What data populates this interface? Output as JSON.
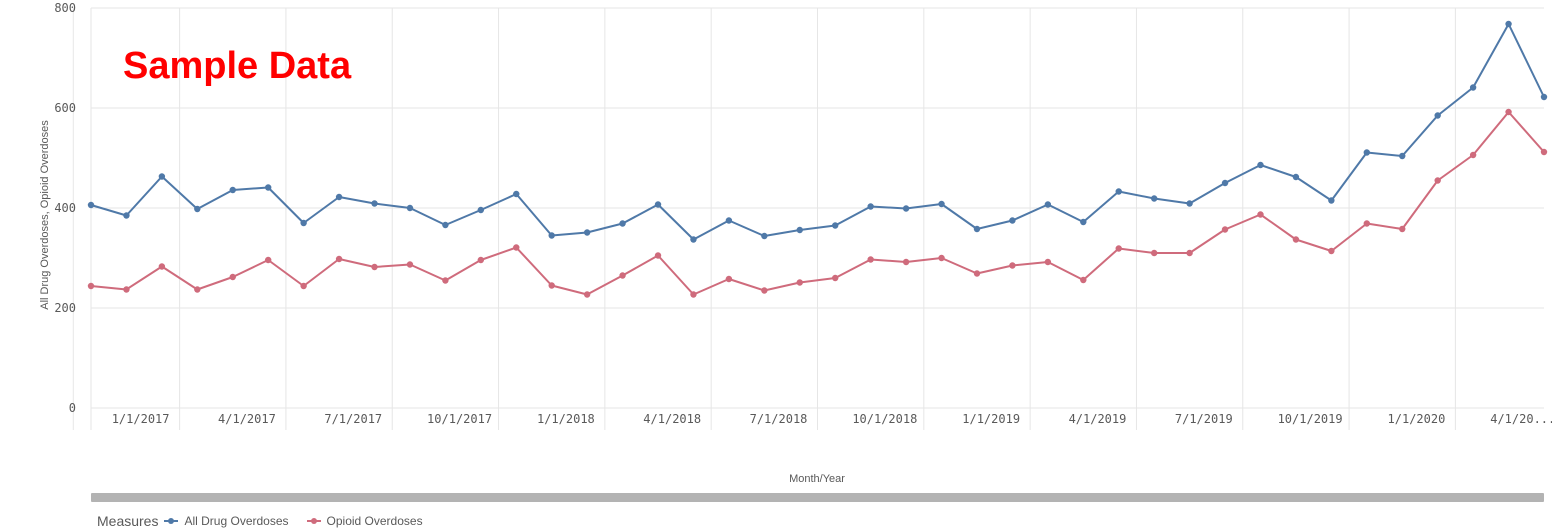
{
  "watermark": "Sample Data",
  "colors": {
    "all": "#4f79a8",
    "opioid": "#cf6b7c",
    "grid": "#e6e6e6",
    "axis": "#9a9a9a"
  },
  "legend": {
    "title": "Measures",
    "items": [
      {
        "label": "All Drug Overdoses",
        "color": "#4f79a8"
      },
      {
        "label": "Opioid Overdoses",
        "color": "#cf6b7c"
      }
    ]
  },
  "chart_data": {
    "type": "line",
    "xlabel": "Month/Year",
    "ylabel": "All Drug Overdoses, Opioid Overdoses",
    "ylim": [
      0,
      800
    ],
    "yticks": [
      0,
      200,
      400,
      600,
      800
    ],
    "grid": true,
    "legend_position": "bottom-left",
    "x": [
      "12/1/2016",
      "1/1/2017",
      "2/1/2017",
      "3/1/2017",
      "4/1/2017",
      "5/1/2017",
      "6/1/2017",
      "7/1/2017",
      "8/1/2017",
      "9/1/2017",
      "10/1/2017",
      "11/1/2017",
      "12/1/2017",
      "1/1/2018",
      "2/1/2018",
      "3/1/2018",
      "4/1/2018",
      "5/1/2018",
      "6/1/2018",
      "7/1/2018",
      "8/1/2018",
      "9/1/2018",
      "10/1/2018",
      "11/1/2018",
      "12/1/2018",
      "1/1/2019",
      "2/1/2019",
      "3/1/2019",
      "4/1/2019",
      "5/1/2019",
      "6/1/2019",
      "7/1/2019",
      "8/1/2019",
      "9/1/2019",
      "10/1/2019",
      "11/1/2019",
      "12/1/2019",
      "1/1/2020",
      "2/1/2020",
      "3/1/2020",
      "4/1/2020",
      "5/1/2020"
    ],
    "xtick_labels": [
      "1/1/2017",
      "4/1/2017",
      "7/1/2017",
      "10/1/2017",
      "1/1/2018",
      "4/1/2018",
      "7/1/2018",
      "10/1/2018",
      "1/1/2019",
      "4/1/2019",
      "7/1/2019",
      "10/1/2019",
      "1/1/2020",
      "4/1/20..."
    ],
    "series": [
      {
        "name": "All Drug Overdoses",
        "color": "#4f79a8",
        "values": [
          406,
          385,
          463,
          398,
          436,
          441,
          370,
          422,
          409,
          400,
          366,
          396,
          428,
          345,
          351,
          369,
          407,
          337,
          375,
          344,
          356,
          365,
          403,
          399,
          408,
          358,
          375,
          407,
          372,
          433,
          419,
          409,
          450,
          486,
          462,
          415,
          511,
          504,
          585,
          641,
          768,
          622
        ]
      },
      {
        "name": "Opioid Overdoses",
        "color": "#cf6b7c",
        "values": [
          244,
          237,
          283,
          237,
          262,
          296,
          244,
          298,
          282,
          287,
          255,
          296,
          321,
          245,
          227,
          265,
          305,
          227,
          258,
          235,
          251,
          260,
          297,
          292,
          300,
          269,
          285,
          292,
          256,
          319,
          310,
          310,
          357,
          387,
          337,
          314,
          369,
          358,
          455,
          506,
          592,
          512
        ]
      }
    ]
  }
}
